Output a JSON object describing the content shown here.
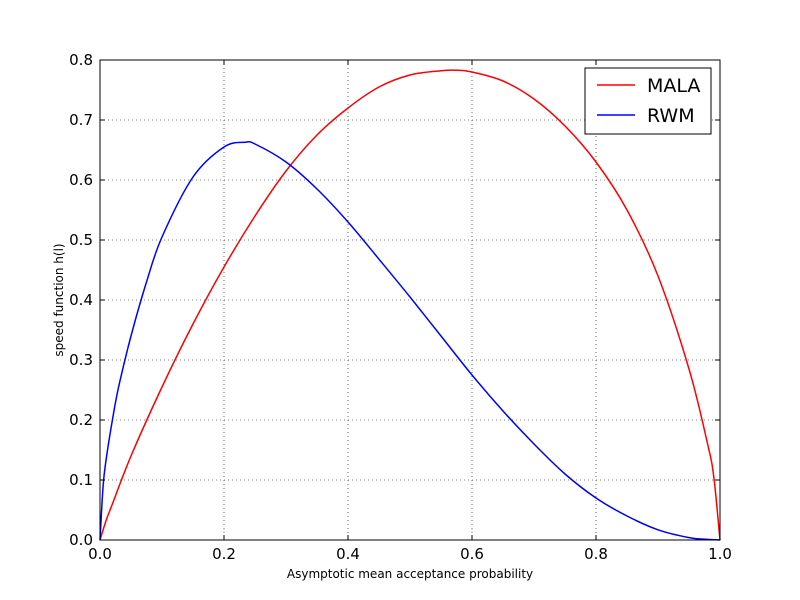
{
  "chart_data": {
    "type": "line",
    "title": "",
    "xlabel": "Asymptotic mean acceptance probability",
    "ylabel": "speed function h(l)",
    "xlim": [
      0.0,
      1.0
    ],
    "ylim": [
      0.0,
      0.8
    ],
    "grid": true,
    "legend_position": "top-right",
    "x_ticks": [
      "0.0",
      "0.2",
      "0.4",
      "0.6",
      "0.8",
      "1.0"
    ],
    "y_ticks": [
      "0.0",
      "0.1",
      "0.2",
      "0.3",
      "0.4",
      "0.5",
      "0.6",
      "0.7",
      "0.8"
    ],
    "series": [
      {
        "name": "MALA",
        "color": "#ff0000",
        "x": [
          0.0,
          0.01,
          0.02,
          0.05,
          0.1,
          0.15,
          0.2,
          0.25,
          0.3,
          0.35,
          0.4,
          0.45,
          0.5,
          0.55,
          0.574,
          0.6,
          0.65,
          0.7,
          0.75,
          0.8,
          0.85,
          0.9,
          0.95,
          0.98,
          0.99,
          1.0
        ],
        "y": [
          0.0,
          0.033,
          0.06,
          0.14,
          0.255,
          0.36,
          0.455,
          0.54,
          0.615,
          0.675,
          0.72,
          0.755,
          0.775,
          0.782,
          0.783,
          0.78,
          0.765,
          0.735,
          0.69,
          0.63,
          0.55,
          0.44,
          0.285,
          0.16,
          0.105,
          0.0
        ]
      },
      {
        "name": "RWM",
        "color": "#0000ff",
        "x": [
          0.0,
          0.005,
          0.01,
          0.02,
          0.03,
          0.05,
          0.075,
          0.1,
          0.15,
          0.2,
          0.234,
          0.25,
          0.3,
          0.35,
          0.4,
          0.45,
          0.5,
          0.55,
          0.6,
          0.65,
          0.7,
          0.75,
          0.8,
          0.85,
          0.9,
          0.95,
          0.98,
          1.0
        ],
        "y": [
          0.0,
          0.09,
          0.135,
          0.2,
          0.255,
          0.34,
          0.43,
          0.505,
          0.605,
          0.655,
          0.663,
          0.66,
          0.63,
          0.585,
          0.53,
          0.468,
          0.405,
          0.34,
          0.275,
          0.215,
          0.16,
          0.11,
          0.07,
          0.04,
          0.017,
          0.004,
          0.001,
          0.0
        ]
      }
    ]
  }
}
